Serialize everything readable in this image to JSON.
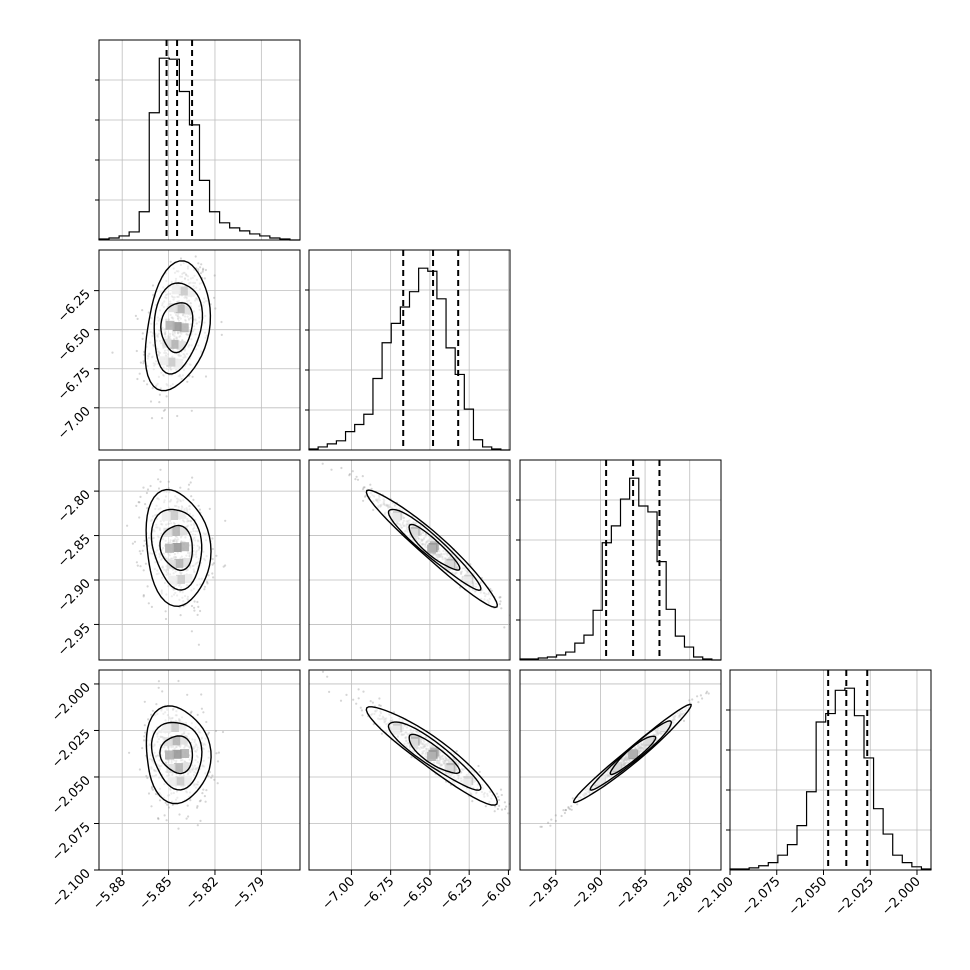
{
  "chart_data": {
    "type": "corner",
    "parameters": [
      {
        "range": [
          -5.895,
          -5.765
        ],
        "ticks": [
          -5.88,
          -5.85,
          -5.82,
          -5.79
        ],
        "tick_labels": [
          "−5.88",
          "−5.85",
          "−5.82",
          "−5.79"
        ],
        "quantiles": [
          -5.8513,
          -5.8445,
          -5.8348
        ],
        "hist_counts": [
          1,
          2,
          4,
          8,
          28,
          126,
          180,
          179,
          147,
          114,
          59,
          28,
          17,
          12,
          9,
          6,
          4,
          2,
          1,
          0
        ]
      },
      {
        "range": [
          -7.27,
          -5.99
        ],
        "ticks": [
          -7.0,
          -6.75,
          -6.5,
          -6.25
        ],
        "x_ticks": [
          -7.0,
          -6.75,
          -6.5,
          -6.25,
          -6.0
        ],
        "tick_labels": [
          "−7.00",
          "−6.75",
          "−6.50",
          "−6.25"
        ],
        "x_tick_labels": [
          "−7.00",
          "−6.75",
          "−6.50",
          "−6.25",
          "−6.00"
        ],
        "quantiles": [
          -6.67,
          -6.48,
          -6.32
        ],
        "hist_counts": [
          1,
          3,
          6,
          9,
          18,
          25,
          35,
          70,
          105,
          124,
          140,
          155,
          178,
          175,
          148,
          100,
          74,
          40,
          10,
          3,
          1,
          0
        ]
      },
      {
        "range": [
          -2.99,
          -2.765
        ],
        "ticks": [
          -2.95,
          -2.9,
          -2.85,
          -2.8
        ],
        "tick_labels": [
          "−2.95",
          "−2.90",
          "−2.85",
          "−2.80"
        ],
        "quantiles": [
          -2.8936,
          -2.8634,
          -2.8339
        ],
        "hist_counts": [
          1,
          1,
          2,
          3,
          5,
          8,
          17,
          25,
          50,
          118,
          135,
          162,
          183,
          155,
          149,
          99,
          51,
          24,
          13,
          3,
          1,
          0
        ]
      },
      {
        "range": [
          -2.1,
          -1.9925
        ],
        "ticks": [
          -2.1,
          -2.075,
          -2.05,
          -2.025,
          -2.0
        ],
        "y_ticks": [
          -2.1,
          -2.075,
          -2.05,
          -2.025,
          -2.0
        ],
        "tick_labels": [
          "−2.100",
          "−2.075",
          "−2.050",
          "−2.025",
          "−2.000"
        ],
        "quantiles": [
          -2.0475,
          -2.0378,
          -2.0266
        ],
        "hist_counts": [
          1,
          1,
          2,
          4,
          7,
          14,
          24,
          42,
          74,
          140,
          148,
          170,
          172,
          146,
          106,
          58,
          34,
          14,
          7,
          3,
          1
        ]
      }
    ],
    "pairs": [
      {
        "row": 1,
        "col": 0,
        "mean": [
          -5.8445,
          -6.48
        ],
        "sd": [
          0.009,
          0.19
        ],
        "rho": 0.3
      },
      {
        "row": 2,
        "col": 0,
        "mean": [
          -5.8445,
          -2.8634
        ],
        "sd": [
          0.009,
          0.03
        ],
        "rho": -0.15
      },
      {
        "row": 2,
        "col": 1,
        "mean": [
          -6.48,
          -2.8634
        ],
        "sd": [
          0.19,
          0.03
        ],
        "rho": -0.98
      },
      {
        "row": 3,
        "col": 0,
        "mean": [
          -5.8445,
          -2.0378
        ],
        "sd": [
          0.009,
          0.012
        ],
        "rho": -0.1
      },
      {
        "row": 3,
        "col": 1,
        "mean": [
          -6.48,
          -2.0378
        ],
        "sd": [
          0.19,
          0.012
        ],
        "rho": -0.96
      },
      {
        "row": 3,
        "col": 2,
        "mean": [
          -2.8634,
          -2.0378
        ],
        "sd": [
          0.03,
          0.012
        ],
        "rho": 0.995
      }
    ],
    "grid": true,
    "title": "",
    "xlabel": "",
    "ylabel": ""
  }
}
